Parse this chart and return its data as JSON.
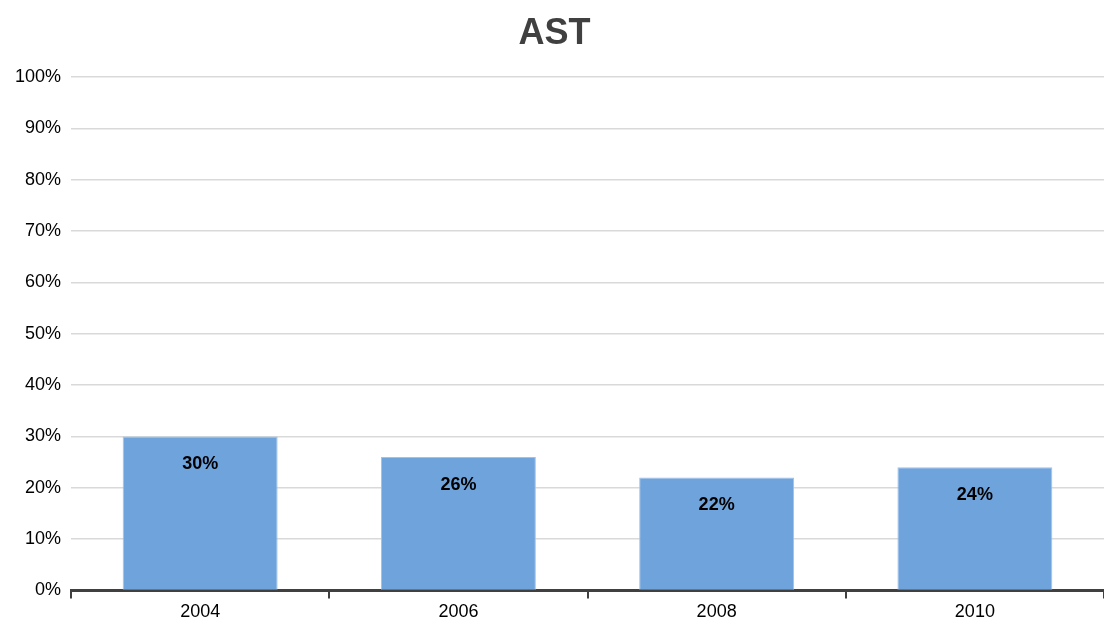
{
  "chart_data": {
    "type": "bar",
    "title": "AST",
    "categories": [
      "2004",
      "2006",
      "2008",
      "2010"
    ],
    "values": [
      30,
      26,
      22,
      24
    ],
    "value_labels": [
      "30%",
      "26%",
      "22%",
      "24%"
    ],
    "color": "#6fa3dc",
    "ylim": [
      0,
      100
    ],
    "yticks": [
      {
        "value": 0,
        "label": "0%"
      },
      {
        "value": 10,
        "label": "10%"
      },
      {
        "value": 20,
        "label": "20%"
      },
      {
        "value": 30,
        "label": "30%"
      },
      {
        "value": 40,
        "label": "40%"
      },
      {
        "value": 50,
        "label": "50%"
      },
      {
        "value": 60,
        "label": "60%"
      },
      {
        "value": 70,
        "label": "70%"
      },
      {
        "value": 80,
        "label": "80%"
      },
      {
        "value": 90,
        "label": "90%"
      },
      {
        "value": 100,
        "label": "100%"
      }
    ],
    "grid": "y"
  }
}
